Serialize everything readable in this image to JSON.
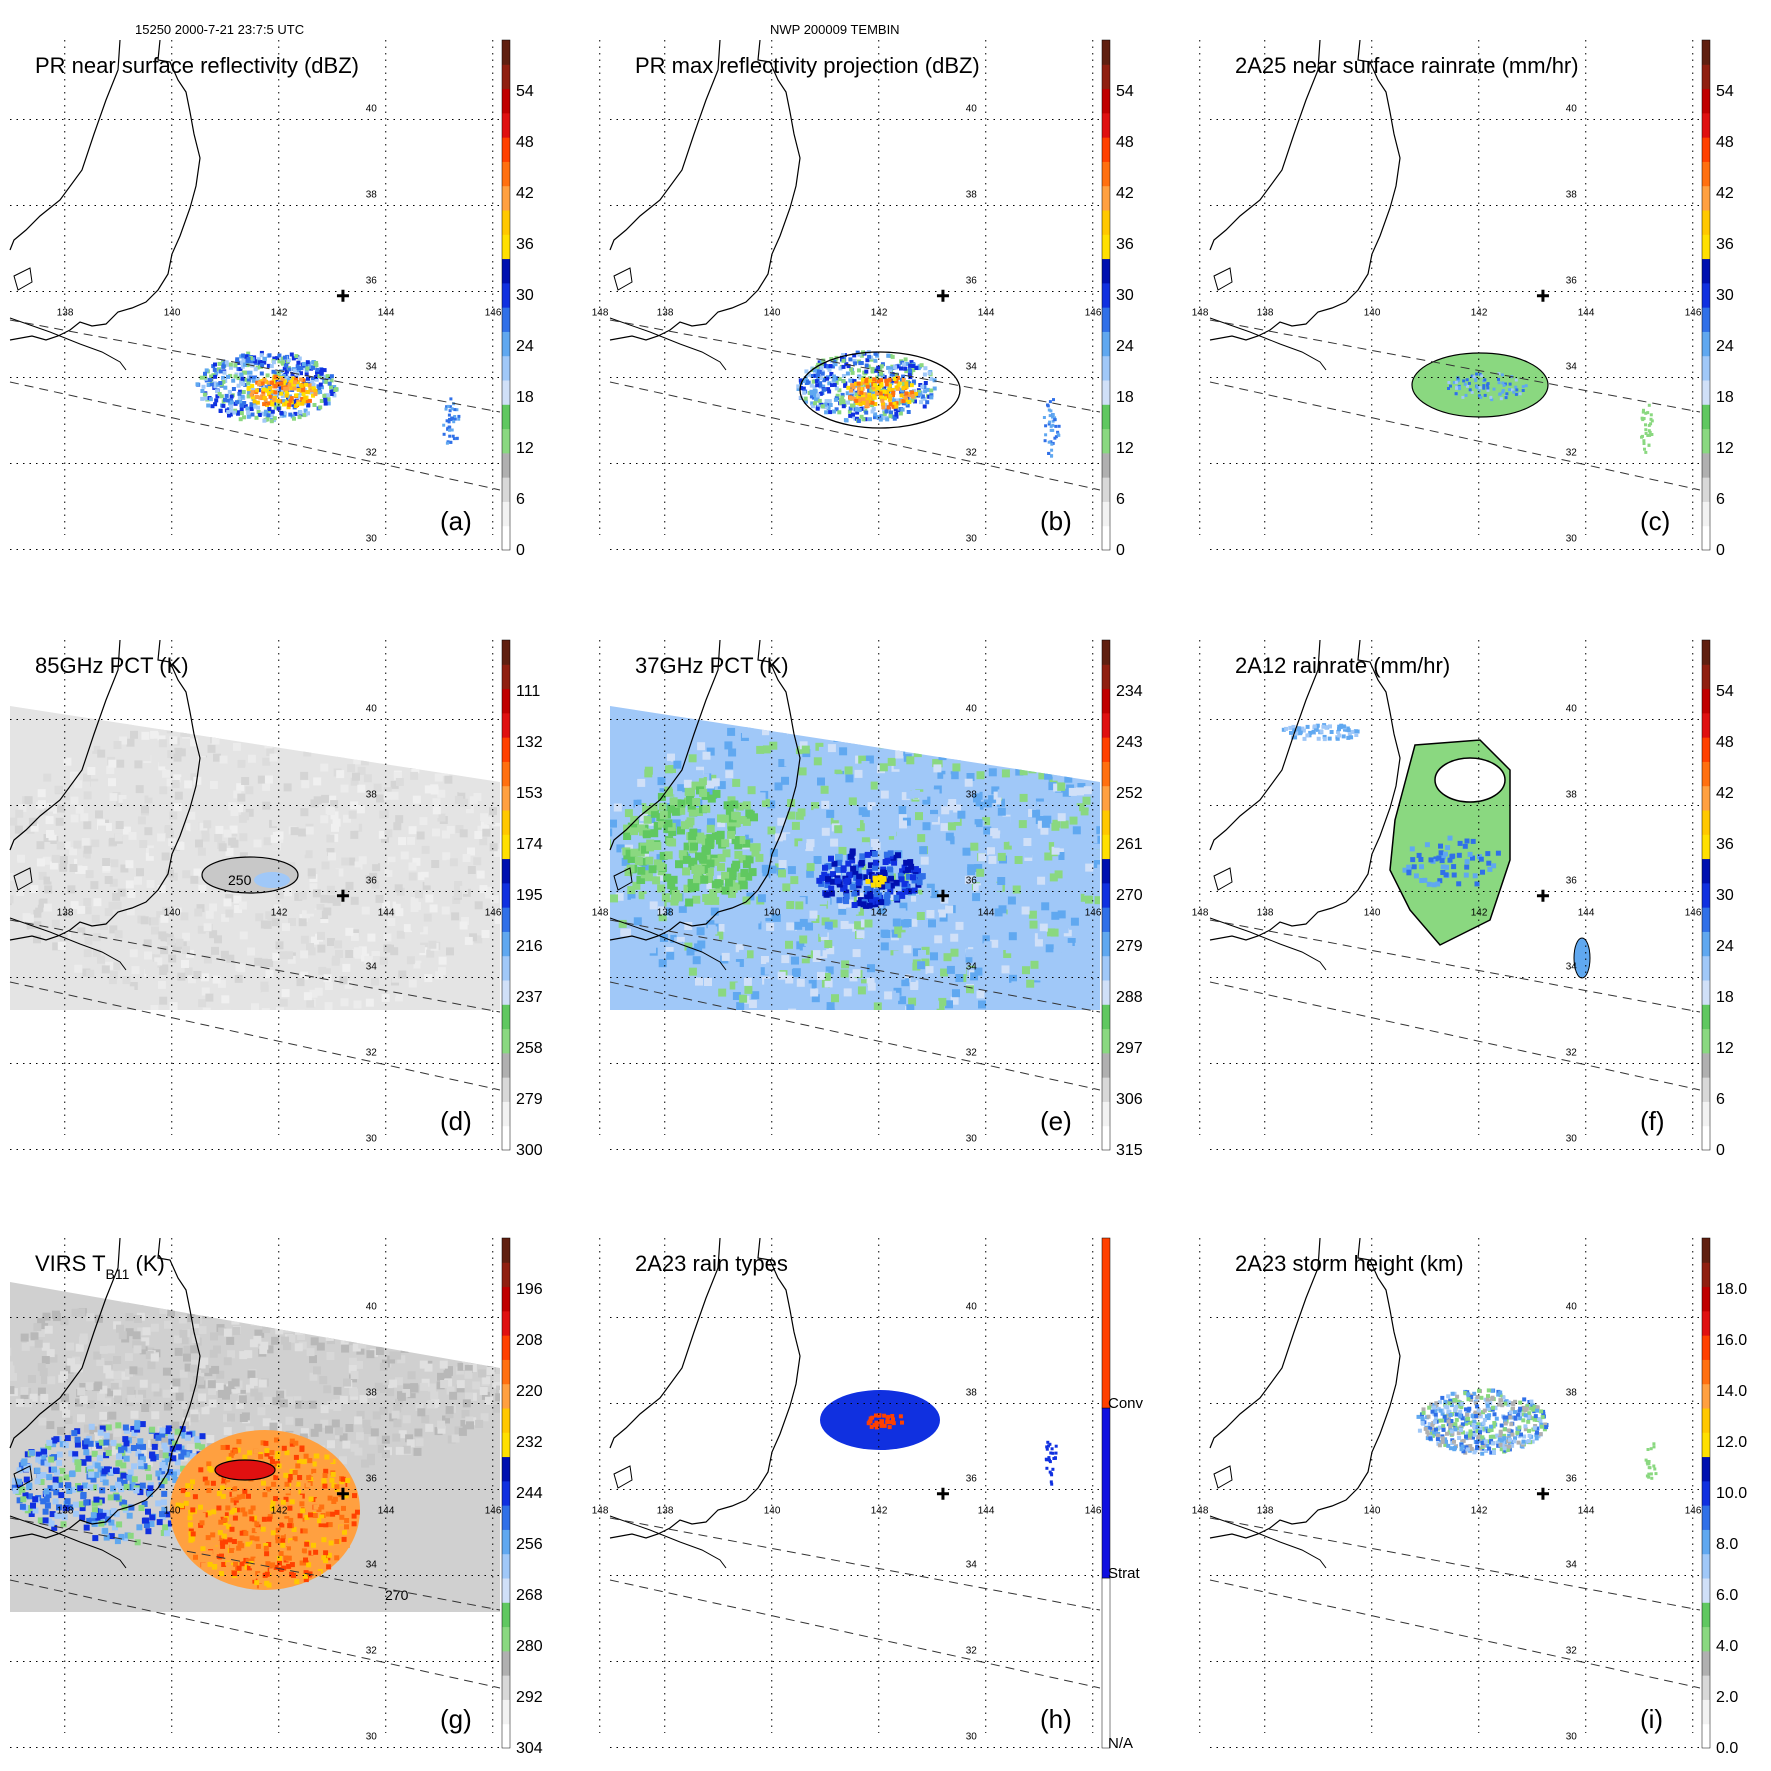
{
  "header": {
    "orbit_time": "15250 2000-7-21 23:7:5 UTC",
    "storm": "NWP 200009 TEMBIN"
  },
  "map": {
    "lon_labels": [
      "138",
      "140",
      "142",
      "144",
      "146",
      "148"
    ],
    "lat_labels": [
      "30",
      "32",
      "34",
      "36",
      "38",
      "40"
    ],
    "storm_center_marker": "plus-icon"
  },
  "panels": [
    {
      "id": "a",
      "title": "PR near surface reflectivity (dBZ)",
      "letter": "(a)",
      "colorbar": {
        "ticks": [
          "0",
          "6",
          "12",
          "18",
          "24",
          "30",
          "36",
          "42",
          "48",
          "54"
        ]
      },
      "field": "reflectivity"
    },
    {
      "id": "b",
      "title": "PR max reflectivity projection (dBZ)",
      "letter": "(b)",
      "colorbar": {
        "ticks": [
          "0",
          "6",
          "12",
          "18",
          "24",
          "30",
          "36",
          "42",
          "48",
          "54"
        ]
      },
      "field": "maxrefl"
    },
    {
      "id": "c",
      "title": "2A25 near surface rainrate (mm/hr)",
      "letter": "(c)",
      "colorbar": {
        "ticks": [
          "0",
          "6",
          "12",
          "18",
          "24",
          "30",
          "36",
          "42",
          "48",
          "54"
        ]
      },
      "field": "rain25"
    },
    {
      "id": "d",
      "title": "85GHz PCT (K)",
      "letter": "(d)",
      "contour_label": "250",
      "colorbar": {
        "ticks": [
          "300",
          "279",
          "258",
          "237",
          "216",
          "195",
          "174",
          "153",
          "132",
          "111"
        ]
      },
      "field": "pct85"
    },
    {
      "id": "e",
      "title": "37GHz PCT (K)",
      "letter": "(e)",
      "colorbar": {
        "ticks": [
          "315",
          "306",
          "297",
          "288",
          "279",
          "270",
          "261",
          "252",
          "243",
          "234"
        ]
      },
      "field": "pct37"
    },
    {
      "id": "f",
      "title": "2A12 rainrate (mm/hr)",
      "letter": "(f)",
      "colorbar": {
        "ticks": [
          "0",
          "6",
          "12",
          "18",
          "24",
          "30",
          "36",
          "42",
          "48",
          "54"
        ]
      },
      "field": "rain12"
    },
    {
      "id": "g",
      "title_main": "VIRS T",
      "title_sub": "B11",
      "title_unit": " (K)",
      "letter": "(g)",
      "contour_label": "270",
      "colorbar": {
        "ticks": [
          "304",
          "292",
          "280",
          "268",
          "256",
          "244",
          "232",
          "220",
          "208",
          "196"
        ]
      },
      "field": "virs"
    },
    {
      "id": "h",
      "title": "2A23 rain types",
      "letter": "(h)",
      "colorbar": {
        "ticks": [
          "N/A",
          "Strat",
          "Conv"
        ],
        "categorical": true,
        "colors": [
          "#ffffff",
          "#1010e0",
          "#ff4000"
        ]
      },
      "field": "raintype"
    },
    {
      "id": "i",
      "title": "2A23 storm height (km)",
      "letter": "(i)",
      "colorbar": {
        "ticks": [
          "0.0",
          "2.0",
          "4.0",
          "6.0",
          "8.0",
          "10.0",
          "12.0",
          "14.0",
          "16.0",
          "18.0"
        ]
      },
      "field": "height"
    }
  ],
  "palette": [
    "#ffffff",
    "#f0f0f0",
    "#d0d0d0",
    "#a8a8a8",
    "#8ad880",
    "#60c860",
    "#d0e0f8",
    "#a0c8f8",
    "#60a8f0",
    "#3070e8",
    "#1030e0",
    "#0010b0",
    "#ffe000",
    "#ffc800",
    "#ffa040",
    "#ff7010",
    "#ff4000",
    "#e01010",
    "#c00000",
    "#902010",
    "#602010"
  ],
  "gray_palette": [
    "#ffffff",
    "#f2f2f2",
    "#e6e6e6",
    "#d6d6d6",
    "#c4c4c4",
    "#b0b0b0",
    "#9a9a9a"
  ]
}
